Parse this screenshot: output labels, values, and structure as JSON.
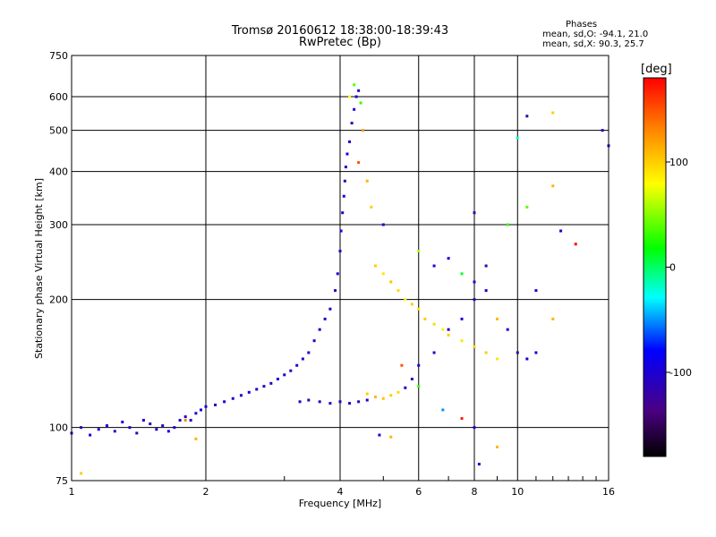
{
  "header": {
    "title_line1": "Tromsø 20160612 18:38:00-18:39:43",
    "title_line2": "RwPretec (Bp)",
    "stats_title": "Phases",
    "stats_o": "mean, sd,O: -94.1, 21.0",
    "stats_x": "mean, sd,X: 90.3, 25.7"
  },
  "colorbar": {
    "unit": "[deg]",
    "range": [
      -180,
      180
    ],
    "ticks": [
      {
        "value": 100,
        "label": "100"
      },
      {
        "value": 0,
        "label": "0"
      },
      {
        "value": -100,
        "label": "-100"
      }
    ]
  },
  "chart_data": {
    "type": "scatter",
    "xlabel": "Frequency [MHz]",
    "ylabel": "Stationary phase Virtual Height [km]",
    "xscale": "log",
    "yscale": "log",
    "xlim": [
      1,
      16
    ],
    "ylim": [
      75,
      750
    ],
    "xticks": [
      {
        "value": 1,
        "label": "1"
      },
      {
        "value": 2,
        "label": "2"
      },
      {
        "value": 4,
        "label": "4"
      },
      {
        "value": 6,
        "label": "6"
      },
      {
        "value": 8,
        "label": "8"
      },
      {
        "value": 10,
        "label": "10"
      },
      {
        "value": 16,
        "label": "16"
      }
    ],
    "yticks": [
      {
        "value": 75,
        "label": "75"
      },
      {
        "value": 100,
        "label": "100"
      },
      {
        "value": 200,
        "label": "200"
      },
      {
        "value": 300,
        "label": "300"
      },
      {
        "value": 400,
        "label": "400"
      },
      {
        "value": 500,
        "label": "500"
      },
      {
        "value": 600,
        "label": "600"
      },
      {
        "value": 750,
        "label": "750"
      }
    ],
    "grid": true,
    "points": [
      [
        1.0,
        97,
        -100
      ],
      [
        1.05,
        100,
        -110
      ],
      [
        1.1,
        96,
        -95
      ],
      [
        1.15,
        99,
        -105
      ],
      [
        1.2,
        101,
        -100
      ],
      [
        1.25,
        98,
        -115
      ],
      [
        1.3,
        103,
        -90
      ],
      [
        1.35,
        100,
        -100
      ],
      [
        1.4,
        97,
        -110
      ],
      [
        1.45,
        104,
        -95
      ],
      [
        1.5,
        102,
        -105
      ],
      [
        1.55,
        99,
        -100
      ],
      [
        1.6,
        101,
        -110
      ],
      [
        1.65,
        98,
        -95
      ],
      [
        1.7,
        100,
        -100
      ],
      [
        1.75,
        104,
        -105
      ],
      [
        1.8,
        106,
        -95
      ],
      [
        1.85,
        104,
        -110
      ],
      [
        1.9,
        108,
        -100
      ],
      [
        1.95,
        110,
        -90
      ],
      [
        2.0,
        112,
        -100
      ],
      [
        2.1,
        113,
        -110
      ],
      [
        2.2,
        115,
        -95
      ],
      [
        2.3,
        117,
        -100
      ],
      [
        2.4,
        119,
        -105
      ],
      [
        2.5,
        121,
        -95
      ],
      [
        2.6,
        123,
        -100
      ],
      [
        2.7,
        125,
        -110
      ],
      [
        2.8,
        127,
        -100
      ],
      [
        2.9,
        130,
        -90
      ],
      [
        3.0,
        133,
        -100
      ],
      [
        3.1,
        136,
        -105
      ],
      [
        3.2,
        140,
        -100
      ],
      [
        3.3,
        145,
        -110
      ],
      [
        3.4,
        150,
        -100
      ],
      [
        3.5,
        160,
        -95
      ],
      [
        3.6,
        170,
        -100
      ],
      [
        3.7,
        180,
        -110
      ],
      [
        3.8,
        190,
        -100
      ],
      [
        3.9,
        210,
        -105
      ],
      [
        3.25,
        115,
        -110
      ],
      [
        3.4,
        116,
        -115
      ],
      [
        3.6,
        115,
        -110
      ],
      [
        3.8,
        114,
        -105
      ],
      [
        4.0,
        115,
        -110
      ],
      [
        4.2,
        114,
        -100
      ],
      [
        4.4,
        115,
        -110
      ],
      [
        4.6,
        116,
        -105
      ],
      [
        3.95,
        230,
        -100
      ],
      [
        4.0,
        260,
        -110
      ],
      [
        4.02,
        290,
        -95
      ],
      [
        4.05,
        320,
        -105
      ],
      [
        4.08,
        350,
        -100
      ],
      [
        4.1,
        380,
        -110
      ],
      [
        4.12,
        410,
        -100
      ],
      [
        4.15,
        440,
        -90
      ],
      [
        4.2,
        470,
        -100
      ],
      [
        4.25,
        520,
        -105
      ],
      [
        4.3,
        560,
        -100
      ],
      [
        4.35,
        600,
        -110
      ],
      [
        4.4,
        620,
        -100
      ],
      [
        4.3,
        640,
        40
      ],
      [
        4.45,
        580,
        30
      ],
      [
        4.2,
        600,
        80
      ],
      [
        4.5,
        500,
        120
      ],
      [
        4.4,
        420,
        150
      ],
      [
        4.6,
        380,
        110
      ],
      [
        4.7,
        330,
        100
      ],
      [
        4.8,
        240,
        100
      ],
      [
        5.0,
        230,
        90
      ],
      [
        5.2,
        220,
        105
      ],
      [
        5.4,
        210,
        95
      ],
      [
        5.6,
        200,
        80
      ],
      [
        5.8,
        195,
        100
      ],
      [
        6.0,
        190,
        90
      ],
      [
        6.2,
        180,
        100
      ],
      [
        6.5,
        175,
        95
      ],
      [
        6.8,
        170,
        85
      ],
      [
        7.0,
        165,
        100
      ],
      [
        7.5,
        160,
        90
      ],
      [
        8.0,
        155,
        95
      ],
      [
        8.5,
        150,
        100
      ],
      [
        9.0,
        145,
        90
      ],
      [
        4.6,
        120,
        100
      ],
      [
        4.8,
        118,
        110
      ],
      [
        5.0,
        117,
        105
      ],
      [
        5.2,
        119,
        100
      ],
      [
        5.4,
        121,
        95
      ],
      [
        5.6,
        124,
        -100
      ],
      [
        5.8,
        130,
        -110
      ],
      [
        6.0,
        140,
        -100
      ],
      [
        6.5,
        150,
        -105
      ],
      [
        7.0,
        170,
        -100
      ],
      [
        7.5,
        180,
        -95
      ],
      [
        8.0,
        200,
        -110
      ],
      [
        8.5,
        210,
        -100
      ],
      [
        5.0,
        300,
        -100
      ],
      [
        6.0,
        260,
        60
      ],
      [
        6.5,
        240,
        -100
      ],
      [
        7.0,
        250,
        -90
      ],
      [
        7.5,
        230,
        10
      ],
      [
        8.0,
        220,
        -100
      ],
      [
        8.5,
        240,
        -110
      ],
      [
        9.0,
        180,
        110
      ],
      [
        9.5,
        170,
        -100
      ],
      [
        10.0,
        150,
        -120
      ],
      [
        10.5,
        145,
        -100
      ],
      [
        11.0,
        150,
        -90
      ],
      [
        5.5,
        140,
        150
      ],
      [
        6.0,
        125,
        30
      ],
      [
        6.8,
        110,
        -50
      ],
      [
        7.5,
        105,
        170
      ],
      [
        8.0,
        100,
        -100
      ],
      [
        8.2,
        82,
        -100
      ],
      [
        9.0,
        90,
        110
      ],
      [
        5.2,
        95,
        110
      ],
      [
        4.9,
        96,
        -100
      ],
      [
        8.0,
        320,
        -110
      ],
      [
        9.5,
        300,
        30
      ],
      [
        10.0,
        480,
        -20
      ],
      [
        10.5,
        540,
        -120
      ],
      [
        10.5,
        330,
        40
      ],
      [
        12.0,
        550,
        100
      ],
      [
        12.0,
        370,
        110
      ],
      [
        12.5,
        290,
        -100
      ],
      [
        13.5,
        270,
        180
      ],
      [
        15.5,
        500,
        -100
      ],
      [
        16.0,
        460,
        -90
      ],
      [
        12.0,
        180,
        110
      ],
      [
        11.0,
        210,
        -100
      ],
      [
        1.05,
        78,
        100
      ],
      [
        1.8,
        104,
        130
      ],
      [
        1.9,
        94,
        110
      ]
    ]
  }
}
